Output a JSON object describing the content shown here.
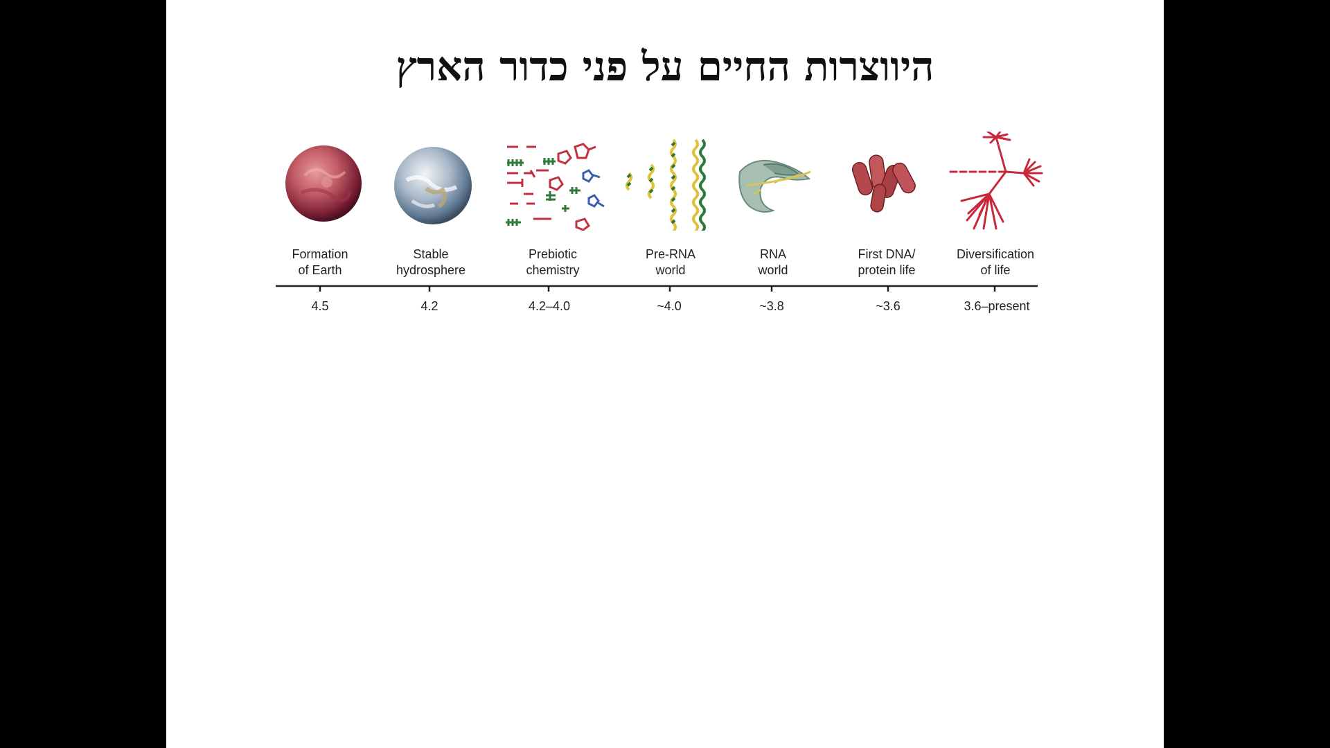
{
  "slide": {
    "title": "היווצרות החיים על פני כדור הארץ"
  },
  "timeline": {
    "stages": [
      {
        "label_line1": "Formation",
        "label_line2": "of Earth",
        "time": "4.5",
        "icon": "reddish-planet-icon"
      },
      {
        "label_line1": "Stable",
        "label_line2": "hydrosphere",
        "time": "4.2",
        "icon": "earth-globe-icon"
      },
      {
        "label_line1": "Prebiotic",
        "label_line2": "chemistry",
        "time": "4.2–4.0",
        "icon": "molecules-icon"
      },
      {
        "label_line1": "Pre-RNA",
        "label_line2": "world",
        "time": "~4.0",
        "icon": "polymer-strands-icon"
      },
      {
        "label_line1": "RNA",
        "label_line2": "world",
        "time": "~3.8",
        "icon": "rna-ribbon-icon"
      },
      {
        "label_line1": "First DNA/",
        "label_line2": "protein life",
        "time": "~3.6",
        "icon": "bacteria-cells-icon"
      },
      {
        "label_line1": "Diversification",
        "label_line2": "of life",
        "time": "3.6–present",
        "icon": "tree-of-life-icon"
      }
    ],
    "colors": {
      "axis": "#222222",
      "molecule_red": "#c0303f",
      "molecule_green": "#2f7a3a",
      "molecule_blue": "#3a5fb0",
      "helix_yellow": "#e2c23a",
      "tree_red": "#c8283a"
    }
  }
}
